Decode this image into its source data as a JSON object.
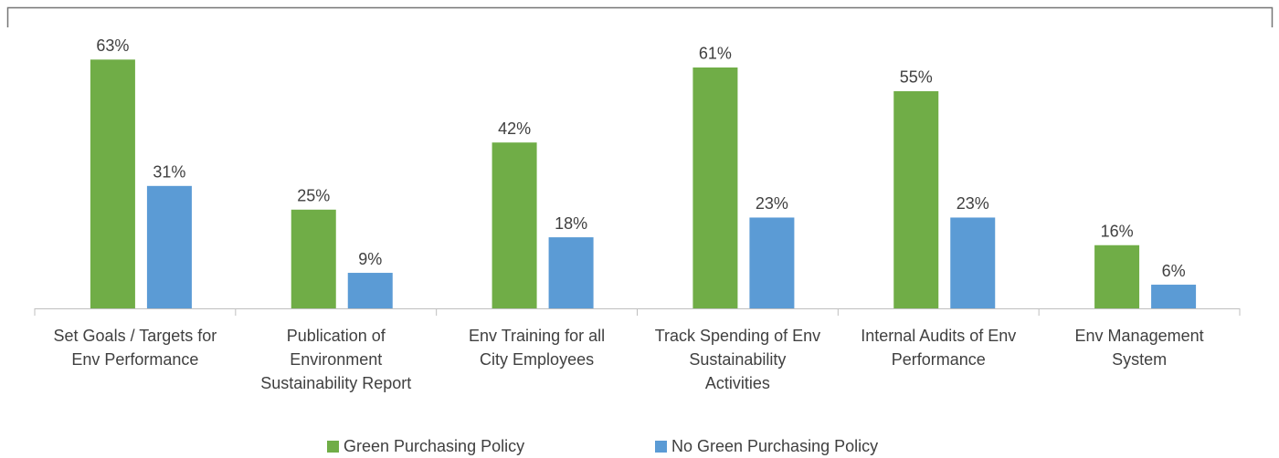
{
  "chart_data": {
    "type": "bar",
    "categories": [
      [
        "Set Goals / Targets for",
        "Env Performance"
      ],
      [
        "Publication of",
        "Environment",
        "Sustainability Report"
      ],
      [
        "Env Training for all",
        "City Employees"
      ],
      [
        "Track Spending of Env",
        "Sustainability",
        "Activities"
      ],
      [
        "Internal Audits of Env",
        "Performance"
      ],
      [
        "Env Management",
        "System"
      ]
    ],
    "series": [
      {
        "name": "Green Purchasing Policy",
        "color": "#70ad47",
        "values": [
          63,
          25,
          42,
          61,
          55,
          16
        ],
        "value_labels": [
          "63%",
          "25%",
          "42%",
          "61%",
          "55%",
          "16%"
        ]
      },
      {
        "name": "No Green Purchasing Policy",
        "color": "#5b9bd5",
        "values": [
          31,
          9,
          18,
          23,
          23,
          6
        ],
        "value_labels": [
          "31%",
          "9%",
          "18%",
          "23%",
          "23%",
          "6%"
        ]
      }
    ],
    "ylim": [
      0,
      70
    ],
    "legend": "bottom"
  }
}
